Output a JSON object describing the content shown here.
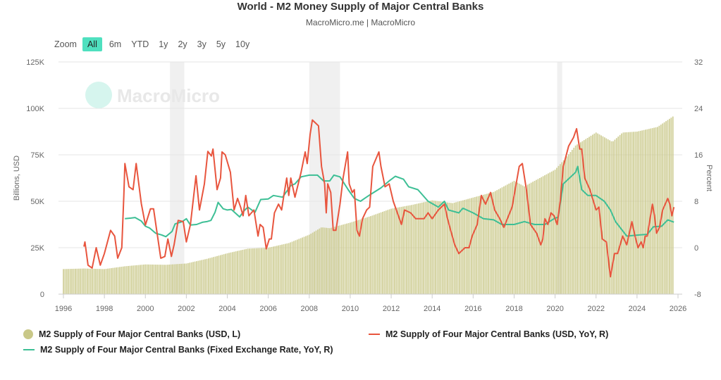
{
  "title": "World - M2 Money Supply of Major Central Banks",
  "subtitle": "MacroMicro.me | MacroMicro",
  "watermark": "MacroMicro",
  "zoom": {
    "label": "Zoom",
    "buttons": [
      "All",
      "6m",
      "YTD",
      "1y",
      "2y",
      "3y",
      "5y",
      "10y"
    ],
    "active": "All"
  },
  "chart_data": {
    "type": "bar+line",
    "title": "World - M2 Money Supply of Major Central Banks",
    "x_ticks": [
      "1996",
      "1998",
      "2000",
      "2002",
      "2004",
      "2006",
      "2008",
      "2010",
      "2012",
      "2014",
      "2016",
      "2018",
      "2020",
      "2022",
      "2024",
      "2026"
    ],
    "xlim": [
      1996,
      2026
    ],
    "y_left": {
      "label": "Billions, USD",
      "ticks": [
        "0",
        "25K",
        "50K",
        "75K",
        "100K",
        "125K"
      ],
      "range": [
        0,
        125000
      ]
    },
    "y_right": {
      "label": "Percent",
      "ticks": [
        "-8",
        "0",
        "8",
        "16",
        "24",
        "32"
      ],
      "range": [
        -8,
        32
      ]
    },
    "grid": true,
    "legend_position": "bottom",
    "shaded_periods": [
      [
        2001.2,
        2001.9
      ],
      [
        2008.0,
        2009.5
      ],
      [
        2020.1,
        2020.35
      ]
    ],
    "series": [
      {
        "name": "M2 Supply of Four Major Central Banks (USD, L)",
        "type": "bar",
        "axis": "left",
        "color": "#c9c888",
        "points": [
          [
            1996,
            13500
          ],
          [
            1997,
            13800
          ],
          [
            1998,
            13500
          ],
          [
            1999,
            15000
          ],
          [
            2000,
            16000
          ],
          [
            2001,
            15800
          ],
          [
            2002,
            16500
          ],
          [
            2003,
            19000
          ],
          [
            2004,
            22000
          ],
          [
            2005,
            24500
          ],
          [
            2006,
            25000
          ],
          [
            2007,
            27500
          ],
          [
            2008,
            32000
          ],
          [
            2008.6,
            36000
          ],
          [
            2009,
            35500
          ],
          [
            2010,
            38500
          ],
          [
            2011,
            42000
          ],
          [
            2012,
            46000
          ],
          [
            2013,
            48000
          ],
          [
            2014,
            50500
          ],
          [
            2015,
            49000
          ],
          [
            2016,
            52000
          ],
          [
            2017,
            55000
          ],
          [
            2018,
            61000
          ],
          [
            2018.5,
            58000
          ],
          [
            2019,
            61000
          ],
          [
            2020,
            67000
          ],
          [
            2020.5,
            73000
          ],
          [
            2021,
            80000
          ],
          [
            2022,
            87000
          ],
          [
            2022.8,
            82000
          ],
          [
            2023.3,
            87000
          ],
          [
            2024,
            87500
          ],
          [
            2024.6,
            89000
          ],
          [
            2025,
            90000
          ],
          [
            2025.8,
            96000
          ]
        ]
      },
      {
        "name": "M2 Supply of Four Major Central Banks (USD, YoY, R)",
        "type": "line",
        "axis": "right",
        "color": "#e8553e",
        "points": [
          [
            1997.0,
            0.2
          ],
          [
            1997.05,
            1
          ],
          [
            1997.2,
            -3
          ],
          [
            1997.4,
            -3.5
          ],
          [
            1997.6,
            0
          ],
          [
            1997.8,
            -3
          ],
          [
            1998.0,
            -1
          ],
          [
            1998.3,
            3
          ],
          [
            1998.5,
            2
          ],
          [
            1998.65,
            -1.8
          ],
          [
            1998.85,
            0
          ],
          [
            1998.95,
            9
          ],
          [
            1999.0,
            14.5
          ],
          [
            1999.2,
            10.5
          ],
          [
            1999.4,
            10
          ],
          [
            1999.55,
            14.5
          ],
          [
            1999.8,
            7.6
          ],
          [
            2000.0,
            3.9
          ],
          [
            2000.25,
            6.7
          ],
          [
            2000.4,
            6.7
          ],
          [
            2000.55,
            3
          ],
          [
            2000.75,
            -1.8
          ],
          [
            2000.95,
            -1.5
          ],
          [
            2001.1,
            1.5
          ],
          [
            2001.27,
            -1.5
          ],
          [
            2001.4,
            0.5
          ],
          [
            2001.6,
            4.7
          ],
          [
            2001.85,
            4.5
          ],
          [
            2002.0,
            1
          ],
          [
            2002.2,
            4
          ],
          [
            2002.47,
            12.4
          ],
          [
            2002.64,
            6.5
          ],
          [
            2002.88,
            11
          ],
          [
            2003.05,
            16.6
          ],
          [
            2003.22,
            15.8
          ],
          [
            2003.3,
            17
          ],
          [
            2003.5,
            10
          ],
          [
            2003.67,
            12
          ],
          [
            2003.74,
            16.5
          ],
          [
            2003.9,
            16
          ],
          [
            2004.15,
            13
          ],
          [
            2004.33,
            6.5
          ],
          [
            2004.5,
            8.5
          ],
          [
            2004.65,
            7
          ],
          [
            2004.77,
            5.5
          ],
          [
            2004.9,
            9
          ],
          [
            2005.05,
            5.5
          ],
          [
            2005.3,
            6.5
          ],
          [
            2005.5,
            2
          ],
          [
            2005.6,
            4
          ],
          [
            2005.75,
            3.5
          ],
          [
            2005.9,
            -0.2
          ],
          [
            2006.05,
            1.5
          ],
          [
            2006.15,
            1.5
          ],
          [
            2006.3,
            6
          ],
          [
            2006.5,
            7.5
          ],
          [
            2006.65,
            6.5
          ],
          [
            2006.77,
            9.2
          ],
          [
            2006.9,
            12
          ],
          [
            2007.0,
            9
          ],
          [
            2007.1,
            12
          ],
          [
            2007.3,
            8.7
          ],
          [
            2007.6,
            13
          ],
          [
            2007.8,
            16.5
          ],
          [
            2007.9,
            14.5
          ],
          [
            2008.04,
            19.5
          ],
          [
            2008.15,
            22
          ],
          [
            2008.3,
            21.5
          ],
          [
            2008.45,
            21
          ],
          [
            2008.6,
            14
          ],
          [
            2008.75,
            11
          ],
          [
            2008.83,
            6
          ],
          [
            2008.9,
            11
          ],
          [
            2009.05,
            9.5
          ],
          [
            2009.17,
            3
          ],
          [
            2009.3,
            3
          ],
          [
            2009.5,
            7.5
          ],
          [
            2009.65,
            12
          ],
          [
            2009.87,
            16.5
          ],
          [
            2009.95,
            11
          ],
          [
            2010.1,
            9.5
          ],
          [
            2010.2,
            10
          ],
          [
            2010.33,
            3
          ],
          [
            2010.45,
            2
          ],
          [
            2010.6,
            5
          ],
          [
            2010.8,
            6.5
          ],
          [
            2010.95,
            7
          ],
          [
            2011.1,
            14
          ],
          [
            2011.4,
            16.5
          ],
          [
            2011.5,
            14
          ],
          [
            2011.7,
            10.5
          ],
          [
            2011.9,
            11
          ],
          [
            2012.1,
            8
          ],
          [
            2012.3,
            6
          ],
          [
            2012.5,
            4
          ],
          [
            2012.65,
            6.5
          ],
          [
            2012.95,
            6
          ],
          [
            2013.2,
            5
          ],
          [
            2013.6,
            5
          ],
          [
            2013.8,
            6
          ],
          [
            2014.0,
            5
          ],
          [
            2014.3,
            6.5
          ],
          [
            2014.6,
            7.5
          ],
          [
            2014.75,
            5
          ],
          [
            2014.9,
            3
          ],
          [
            2015.1,
            0.5
          ],
          [
            2015.3,
            -1
          ],
          [
            2015.6,
            0
          ],
          [
            2015.8,
            0
          ],
          [
            2015.95,
            2
          ],
          [
            2016.2,
            4
          ],
          [
            2016.4,
            9
          ],
          [
            2016.6,
            7.5
          ],
          [
            2016.85,
            9.5
          ],
          [
            2017.05,
            6.5
          ],
          [
            2017.3,
            5
          ],
          [
            2017.5,
            3.5
          ],
          [
            2017.9,
            7
          ],
          [
            2018.25,
            14
          ],
          [
            2018.4,
            14.5
          ],
          [
            2018.6,
            10
          ],
          [
            2018.8,
            4
          ],
          [
            2019.0,
            3
          ],
          [
            2019.1,
            2.5
          ],
          [
            2019.3,
            0.5
          ],
          [
            2019.4,
            1.5
          ],
          [
            2019.5,
            5
          ],
          [
            2019.65,
            4
          ],
          [
            2019.8,
            6
          ],
          [
            2019.95,
            5.5
          ],
          [
            2020.1,
            4
          ],
          [
            2020.25,
            8
          ],
          [
            2020.4,
            14
          ],
          [
            2020.66,
            17.5
          ],
          [
            2020.9,
            19
          ],
          [
            2021.05,
            20.5
          ],
          [
            2021.2,
            17
          ],
          [
            2021.3,
            17
          ],
          [
            2021.45,
            12
          ],
          [
            2021.7,
            10
          ],
          [
            2021.87,
            8
          ],
          [
            2022.0,
            6.5
          ],
          [
            2022.14,
            7
          ],
          [
            2022.3,
            1.5
          ],
          [
            2022.5,
            1
          ],
          [
            2022.7,
            -5
          ],
          [
            2022.9,
            -1
          ],
          [
            2023.05,
            -1
          ],
          [
            2023.3,
            2
          ],
          [
            2023.5,
            0.5
          ],
          [
            2023.75,
            4.5
          ],
          [
            2023.9,
            2
          ],
          [
            2024.05,
            0
          ],
          [
            2024.2,
            1
          ],
          [
            2024.3,
            0
          ],
          [
            2024.4,
            2
          ],
          [
            2024.5,
            2
          ],
          [
            2024.75,
            7.5
          ],
          [
            2024.85,
            5.5
          ],
          [
            2024.95,
            2.5
          ],
          [
            2025.1,
            3.5
          ],
          [
            2025.25,
            6.5
          ],
          [
            2025.5,
            8.5
          ],
          [
            2025.6,
            7.5
          ],
          [
            2025.7,
            5.5
          ],
          [
            2025.8,
            7
          ]
        ]
      },
      {
        "name": "M2 Supply of Four Major Central Banks (Fixed Exchange Rate, YoY, R)",
        "type": "line",
        "axis": "right",
        "color": "#3dbf95",
        "points": [
          [
            1999.0,
            5
          ],
          [
            1999.3,
            5.1
          ],
          [
            1999.5,
            5.2
          ],
          [
            1999.8,
            4.6
          ],
          [
            2000.0,
            3.7
          ],
          [
            2000.2,
            3.4
          ],
          [
            2000.5,
            2.5
          ],
          [
            2000.8,
            2.2
          ],
          [
            2001.0,
            1.9
          ],
          [
            2001.3,
            2.8
          ],
          [
            2001.45,
            4.1
          ],
          [
            2001.8,
            4.5
          ],
          [
            2002.0,
            5
          ],
          [
            2002.2,
            3.9
          ],
          [
            2002.5,
            4
          ],
          [
            2002.8,
            4.4
          ],
          [
            2003.0,
            4.5
          ],
          [
            2003.2,
            4.7
          ],
          [
            2003.4,
            6.1
          ],
          [
            2003.55,
            7.8
          ],
          [
            2003.8,
            6.7
          ],
          [
            2004.0,
            6.5
          ],
          [
            2004.2,
            6.6
          ],
          [
            2004.6,
            5.3
          ],
          [
            2004.8,
            6.3
          ],
          [
            2005.0,
            7
          ],
          [
            2005.35,
            6.1
          ],
          [
            2005.63,
            8.3
          ],
          [
            2006.0,
            8.4
          ],
          [
            2006.25,
            9
          ],
          [
            2006.7,
            8.7
          ],
          [
            2007.1,
            10.7
          ],
          [
            2007.3,
            11
          ],
          [
            2007.6,
            12.2
          ],
          [
            2008.0,
            12.5
          ],
          [
            2008.4,
            12.5
          ],
          [
            2008.7,
            11.5
          ],
          [
            2009.0,
            11.5
          ],
          [
            2009.2,
            12.5
          ],
          [
            2009.5,
            12.2
          ],
          [
            2009.9,
            10
          ],
          [
            2010.2,
            8.5
          ],
          [
            2010.5,
            8
          ],
          [
            2010.7,
            8.5
          ],
          [
            2011.0,
            9.2
          ],
          [
            2011.5,
            10.3
          ],
          [
            2011.9,
            11.5
          ],
          [
            2012.2,
            12.3
          ],
          [
            2012.6,
            11.8
          ],
          [
            2012.85,
            10.5
          ],
          [
            2013.3,
            10
          ],
          [
            2013.8,
            8
          ],
          [
            2014.3,
            7
          ],
          [
            2014.6,
            8
          ],
          [
            2014.8,
            6.5
          ],
          [
            2015.3,
            6
          ],
          [
            2015.5,
            6.8
          ],
          [
            2016.0,
            6
          ],
          [
            2016.5,
            5
          ],
          [
            2017.0,
            4.8
          ],
          [
            2017.4,
            4
          ],
          [
            2018.0,
            4
          ],
          [
            2018.5,
            4.5
          ],
          [
            2019.0,
            4
          ],
          [
            2019.5,
            4
          ],
          [
            2019.95,
            5
          ],
          [
            2020.15,
            5.3
          ],
          [
            2020.4,
            11
          ],
          [
            2021.0,
            13
          ],
          [
            2021.1,
            14
          ],
          [
            2021.3,
            10
          ],
          [
            2021.6,
            9
          ],
          [
            2022.0,
            9
          ],
          [
            2022.4,
            8
          ],
          [
            2022.7,
            6.5
          ],
          [
            2022.95,
            4.5
          ],
          [
            2023.5,
            2
          ],
          [
            2024.1,
            2.2
          ],
          [
            2024.5,
            2.3
          ],
          [
            2024.8,
            3.6
          ],
          [
            2025.2,
            3.7
          ],
          [
            2025.5,
            4.8
          ],
          [
            2025.8,
            4.4
          ]
        ]
      }
    ]
  }
}
